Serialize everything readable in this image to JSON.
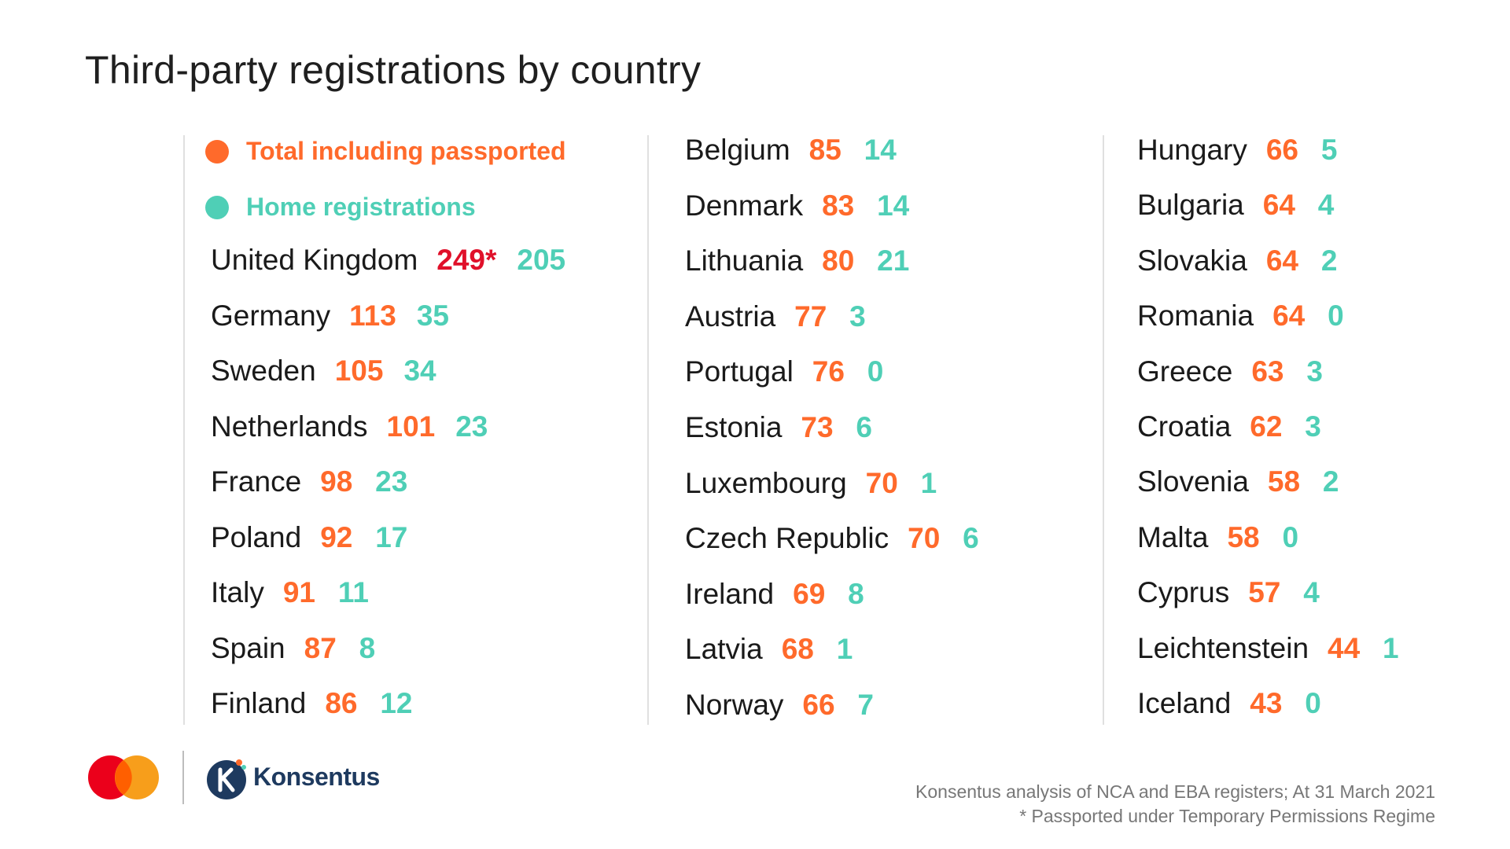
{
  "title": "Third-party registrations by country",
  "colors": {
    "total": "#ff6a2b",
    "home": "#4fcfb6",
    "uk_total": "#e0102a",
    "text": "#1a1a1a"
  },
  "legend": {
    "total_label": "Total including passported",
    "home_label": "Home registrations"
  },
  "columns": [
    [
      {
        "country": "United Kingdom",
        "total": "249*",
        "home": "205"
      },
      {
        "country": "Germany",
        "total": "113",
        "home": "35"
      },
      {
        "country": "Sweden",
        "total": "105",
        "home": "34"
      },
      {
        "country": "Netherlands",
        "total": "101",
        "home": "23"
      },
      {
        "country": "France",
        "total": "98",
        "home": "23"
      },
      {
        "country": "Poland",
        "total": "92",
        "home": "17"
      },
      {
        "country": "Italy",
        "total": "91",
        "home": "11"
      },
      {
        "country": "Spain",
        "total": "87",
        "home": "8"
      },
      {
        "country": "Finland",
        "total": "86",
        "home": "12"
      }
    ],
    [
      {
        "country": "Belgium",
        "total": "85",
        "home": "14"
      },
      {
        "country": "Denmark",
        "total": "83",
        "home": "14"
      },
      {
        "country": "Lithuania",
        "total": "80",
        "home": "21"
      },
      {
        "country": "Austria",
        "total": "77",
        "home": "3"
      },
      {
        "country": "Portugal",
        "total": "76",
        "home": "0"
      },
      {
        "country": "Estonia",
        "total": "73",
        "home": "6"
      },
      {
        "country": "Luxembourg",
        "total": "70",
        "home": "1"
      },
      {
        "country": "Czech Republic",
        "total": "70",
        "home": "6"
      },
      {
        "country": "Ireland",
        "total": "69",
        "home": "8"
      },
      {
        "country": "Latvia",
        "total": "68",
        "home": "1"
      },
      {
        "country": "Norway",
        "total": "66",
        "home": "7"
      }
    ],
    [
      {
        "country": "Hungary",
        "total": "66",
        "home": "5"
      },
      {
        "country": "Bulgaria",
        "total": "64",
        "home": "4"
      },
      {
        "country": "Slovakia",
        "total": "64",
        "home": "2"
      },
      {
        "country": "Romania",
        "total": "64",
        "home": "0"
      },
      {
        "country": "Greece",
        "total": "63",
        "home": "3"
      },
      {
        "country": "Croatia",
        "total": "62",
        "home": "3"
      },
      {
        "country": "Slovenia",
        "total": "58",
        "home": "2"
      },
      {
        "country": "Malta",
        "total": "58",
        "home": "0"
      },
      {
        "country": "Cyprus",
        "total": "57",
        "home": "4"
      },
      {
        "country": "Leichtenstein",
        "total": "44",
        "home": "1"
      },
      {
        "country": "Iceland",
        "total": "43",
        "home": "0"
      }
    ]
  ],
  "footer": {
    "brand_name": "Konsentus",
    "source_line1": "Konsentus analysis of NCA and EBA registers; At 31 March 2021",
    "source_line2": "* Passported under Temporary Permissions Regime"
  }
}
